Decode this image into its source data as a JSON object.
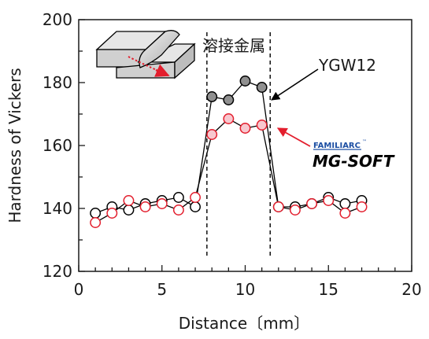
{
  "chart_data": {
    "type": "line",
    "xlabel": "Distance〔mm〕",
    "ylabel": "Hardness of Vickers",
    "xlim": [
      0,
      20
    ],
    "ylim": [
      120,
      200
    ],
    "xticks": [
      "0",
      "5",
      "10",
      "15",
      "20"
    ],
    "yticks": [
      "120",
      "140",
      "160",
      "180",
      "200"
    ],
    "weld_zone_bounds": [
      7.7,
      11.5
    ],
    "weld_zone_label": "溶接金属",
    "grid": false,
    "series": [
      {
        "name": "YGW12",
        "line_color": "#000000",
        "marker_fill_base": "#ffffff",
        "marker_fill_weld": "#909090",
        "marker_edge": "#000000",
        "x": [
          1,
          2,
          3,
          4,
          5,
          6,
          7,
          8,
          9,
          10,
          11,
          12,
          13,
          14,
          15,
          16,
          17
        ],
        "y": [
          138.5,
          140.5,
          139.5,
          141.5,
          142.5,
          143.5,
          140.5,
          175.5,
          174.5,
          180.5,
          178.5,
          140.5,
          140.5,
          141.5,
          143.5,
          141.5,
          142.5
        ]
      },
      {
        "name": "FAMILIARC MG-SOFT",
        "line_color": "#000000",
        "marker_fill_base": "#ffffff",
        "marker_fill_weld": "#f7c8cf",
        "marker_edge": "#e31e2d",
        "x": [
          1,
          2,
          3,
          4,
          5,
          6,
          7,
          8,
          9,
          10,
          11,
          12,
          13,
          14,
          15,
          16,
          17
        ],
        "y": [
          135.5,
          138.5,
          142.5,
          140.5,
          141.5,
          139.5,
          143.5,
          163.5,
          168.5,
          165.5,
          166.5,
          140.5,
          139.5,
          141.5,
          142.5,
          138.5,
          140.5
        ]
      }
    ],
    "annotations": {
      "ygw12_label": "YGW12",
      "familiarc_label": "FAMILIARC",
      "familiarc_tm": "™",
      "mgsoft_label": "MG-SOFT"
    },
    "colors": {
      "accent_red": "#e31e2d",
      "brand_blue": "#1d4fa3",
      "axis": "#1a1a1a"
    }
  }
}
